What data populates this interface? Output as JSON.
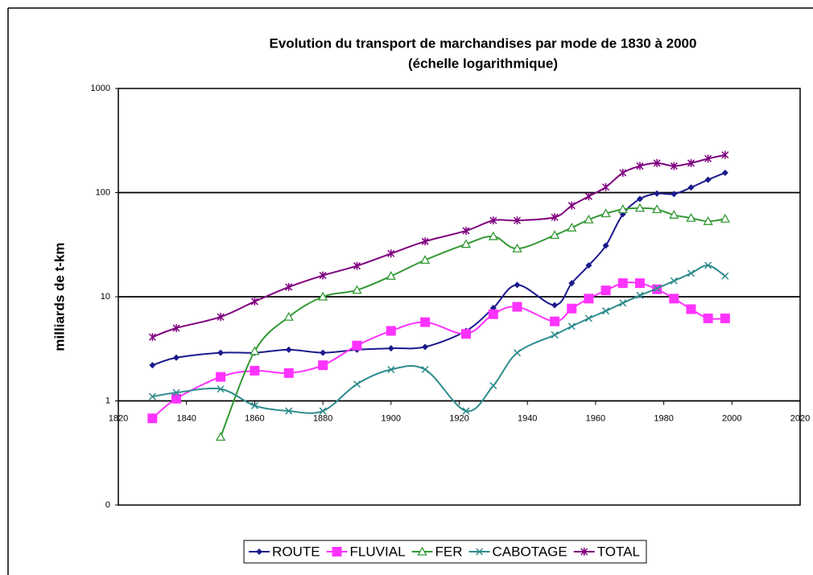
{
  "chart_data": {
    "type": "line",
    "title": "Evolution du transport de marchandises par mode de 1830 à 2000",
    "subtitle": "(échelle logarithmique)",
    "y_label": "milliards de t-km",
    "log_scale": true,
    "grid": true,
    "legend": "bottom",
    "x": [
      1830,
      1837,
      1850,
      1860,
      1870,
      1880,
      1890,
      1900,
      1910,
      1922,
      1930,
      1937,
      1948,
      1953,
      1958,
      1963,
      1968,
      1973,
      1978,
      1983,
      1988,
      1993,
      1998
    ],
    "xlim": [
      1820,
      2020
    ],
    "xticks": [
      1820,
      1840,
      1860,
      1880,
      1900,
      1920,
      1940,
      1960,
      1980,
      2000,
      2020
    ],
    "ylim": [
      0.1,
      1000
    ],
    "yticks": [
      {
        "value": 0.1,
        "label": "0"
      },
      1,
      10,
      100,
      1000
    ],
    "series": [
      {
        "name": "ROUTE",
        "color": "#1a1a8c",
        "marker": "diamond",
        "values": [
          2.2,
          2.6,
          2.9,
          2.9,
          3.1,
          2.9,
          3.1,
          3.2,
          3.3,
          4.7,
          7.8,
          13,
          8.3,
          13.5,
          20,
          31,
          62,
          87,
          98,
          97,
          112,
          133,
          155
        ]
      },
      {
        "name": "FLUVIAL",
        "color": "#ff33ff",
        "marker": "square",
        "values": [
          0.68,
          1.05,
          1.7,
          1.95,
          1.85,
          2.2,
          3.4,
          4.7,
          5.7,
          4.4,
          6.8,
          8,
          5.8,
          7.7,
          9.6,
          11.5,
          13.5,
          13.5,
          11.8,
          9.6,
          7.6,
          6.2,
          6.2
        ]
      },
      {
        "name": "FER",
        "color": "#339933",
        "marker": "triangle",
        "values": [
          null,
          null,
          0.45,
          3,
          6.4,
          10,
          11.6,
          15.8,
          22.5,
          32,
          38,
          29,
          39,
          46,
          55,
          63,
          69,
          71,
          69,
          61,
          57,
          53,
          56
        ]
      },
      {
        "name": "CABOTAGE",
        "color": "#2e8b8b",
        "marker": "x",
        "values": [
          1.1,
          1.2,
          1.3,
          0.9,
          0.8,
          0.8,
          1.45,
          2,
          2,
          0.8,
          1.4,
          2.9,
          4.3,
          5.2,
          6.2,
          7.3,
          8.7,
          10.3,
          12,
          14.2,
          16.8,
          20,
          15.8
        ]
      },
      {
        "name": "TOTAL",
        "color": "#800080",
        "marker": "star",
        "values": [
          4.1,
          5,
          6.4,
          9,
          12.4,
          16,
          19.8,
          26,
          34,
          43,
          54,
          54,
          58,
          75,
          92,
          113,
          155,
          180,
          192,
          180,
          192,
          212,
          230
        ]
      }
    ]
  }
}
